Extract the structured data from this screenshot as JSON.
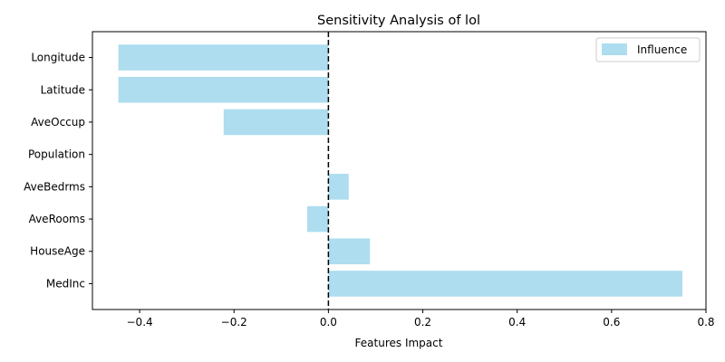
{
  "chart_data": {
    "type": "bar",
    "orientation": "horizontal",
    "title": "Sensitivity Analysis of lol",
    "xlabel": "Features Impact",
    "ylabel": "",
    "categories": [
      "MedInc",
      "HouseAge",
      "AveRooms",
      "AveBedrms",
      "Population",
      "AveOccup",
      "Latitude",
      "Longitude"
    ],
    "series": [
      {
        "name": "Influence",
        "values": [
          0.75,
          0.088,
          -0.045,
          0.043,
          0.0,
          -0.222,
          -0.445,
          -0.445
        ]
      }
    ],
    "xlim": [
      -0.5,
      0.8
    ],
    "xticks": [
      -0.4,
      -0.2,
      0.0,
      0.2,
      0.4,
      0.6,
      0.8
    ],
    "xtick_labels": [
      "−0.4",
      "−0.2",
      "0.0",
      "0.2",
      "0.4",
      "0.6",
      "0.8"
    ],
    "reference_line": {
      "x": 0,
      "style": "dashed",
      "color": "#000000"
    },
    "bar_color": "#ADDDEF",
    "grid": false,
    "legend_position": "top-right"
  }
}
